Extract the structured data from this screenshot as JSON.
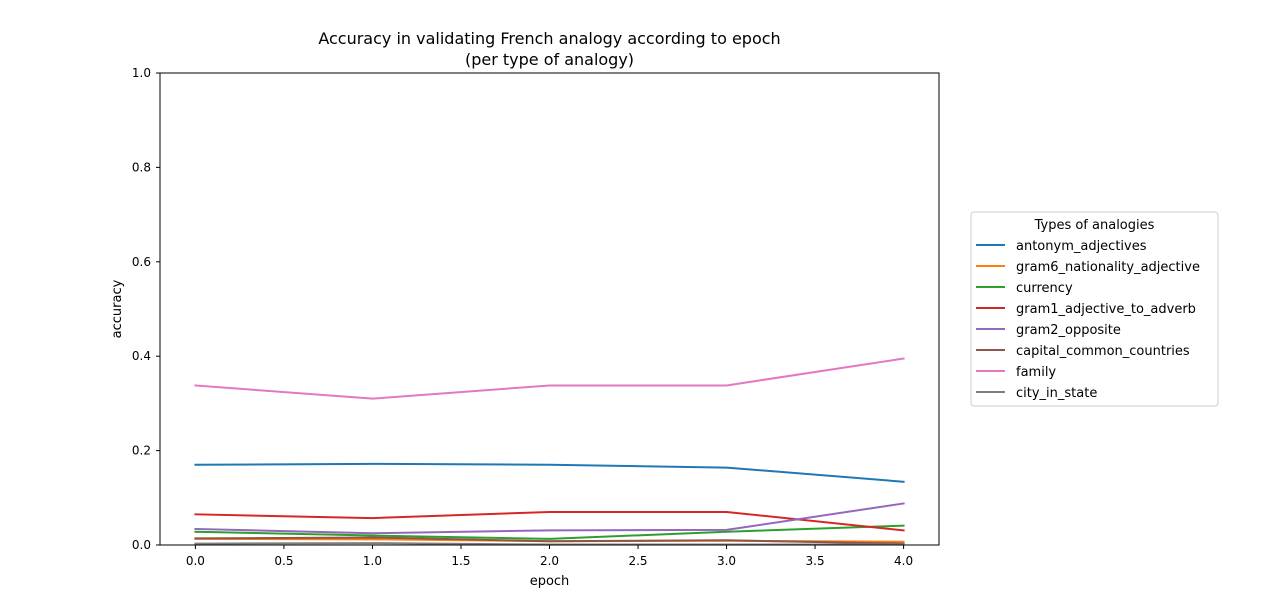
{
  "chart_data": {
    "type": "line",
    "title": "Accuracy in validating French analogy according to epoch",
    "subtitle": "(per type of analogy)",
    "xlabel": "epoch",
    "ylabel": "accuracy",
    "xlim": [
      -0.2,
      4.2
    ],
    "ylim": [
      0.0,
      1.0
    ],
    "xticks": [
      "0.0",
      "0.5",
      "1.0",
      "1.5",
      "2.0",
      "2.5",
      "3.0",
      "3.5",
      "4.0"
    ],
    "yticks": [
      "0.0",
      "0.2",
      "0.4",
      "0.6",
      "0.8",
      "1.0"
    ],
    "grid": false,
    "legend_title": "Types of analogies",
    "legend_position": "outside-right",
    "x": [
      0,
      1,
      2,
      3,
      4
    ],
    "series": [
      {
        "name": "antonym_adjectives",
        "color": "#1f77b4",
        "values": [
          0.17,
          0.172,
          0.17,
          0.164,
          0.134
        ]
      },
      {
        "name": "gram6_nationality_adjective",
        "color": "#ff7f0e",
        "values": [
          0.013,
          0.012,
          0.008,
          0.009,
          0.007
        ]
      },
      {
        "name": "currency",
        "color": "#2ca02c",
        "values": [
          0.028,
          0.02,
          0.013,
          0.028,
          0.041
        ]
      },
      {
        "name": "gram1_adjective_to_adverb",
        "color": "#d62728",
        "values": [
          0.065,
          0.057,
          0.07,
          0.07,
          0.031
        ]
      },
      {
        "name": "gram2_opposite",
        "color": "#9467bd",
        "values": [
          0.034,
          0.025,
          0.031,
          0.032,
          0.088
        ]
      },
      {
        "name": "capital_common_countries",
        "color": "#8c564b",
        "values": [
          0.014,
          0.016,
          0.008,
          0.01,
          0.003
        ]
      },
      {
        "name": "family",
        "color": "#e377c2",
        "values": [
          0.338,
          0.31,
          0.338,
          0.338,
          0.395
        ]
      },
      {
        "name": "city_in_state",
        "color": "#7f7f7f",
        "values": [
          0.003,
          0.004,
          0.001,
          0.001,
          0.001
        ]
      }
    ]
  }
}
